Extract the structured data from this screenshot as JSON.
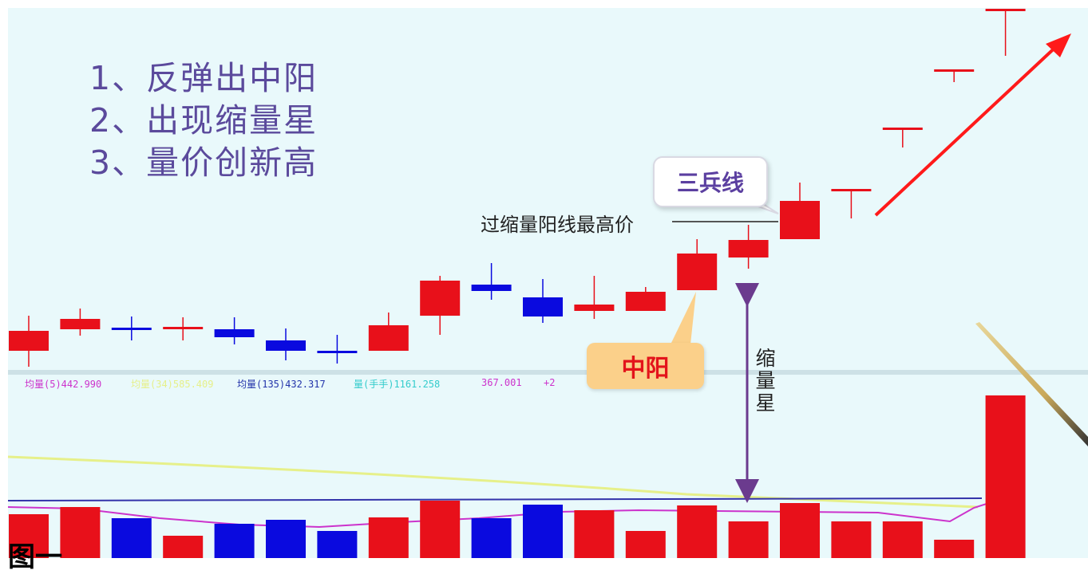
{
  "notes": [
    "1、反弹出中阳",
    "2、出现缩量星",
    "3、量价创新高"
  ],
  "callouts": {
    "sanbing": "三兵线",
    "zhongyang": "中阳",
    "high_line_label": "过缩量阳线最高价",
    "shrink_star": "缩量星"
  },
  "legend": {
    "ma5": "均量(5)442.990",
    "ma_yellow": "均量(34)585.409",
    "ma135": "均量(135)432.317",
    "vol": "量(手手)1161.258",
    "extra": "367.001",
    "plus": "+2"
  },
  "caption": "图一",
  "colors": {
    "up": "#e8101a",
    "down": "#0a0adf",
    "background": "#e9f9fb",
    "ma5_line": "#cc33cc",
    "ma_yellow_line": "#e6f08a",
    "ma135_line": "#3333aa",
    "annotation_arrow": "#6b3b8e"
  },
  "chart_data": {
    "type": "candlestick",
    "candles": [
      {
        "open": 440,
        "close": 415,
        "high": 460,
        "low": 396,
        "dir": "up"
      },
      {
        "open": 413,
        "close": 400,
        "high": 421,
        "low": 387,
        "dir": "up"
      },
      {
        "open": 411,
        "close": 413,
        "high": 427,
        "low": 397,
        "dir": "down"
      },
      {
        "open": 410,
        "close": 412,
        "high": 427,
        "low": 398,
        "dir": "up"
      },
      {
        "open": 413,
        "close": 423,
        "high": 432,
        "low": 398,
        "dir": "down"
      },
      {
        "open": 427,
        "close": 440,
        "high": 452,
        "low": 412,
        "dir": "down"
      },
      {
        "open": 440,
        "close": 443,
        "high": 456,
        "low": 420,
        "dir": "down"
      },
      {
        "open": 440,
        "close": 408,
        "high": 440,
        "low": 392,
        "dir": "up"
      },
      {
        "open": 396,
        "close": 352,
        "high": 420,
        "low": 346,
        "dir": "up"
      },
      {
        "open": 357,
        "close": 365,
        "high": 376,
        "low": 330,
        "dir": "down"
      },
      {
        "open": 373,
        "close": 397,
        "high": 405,
        "low": 350,
        "dir": "down"
      },
      {
        "open": 390,
        "close": 382,
        "high": 400,
        "low": 346,
        "dir": "up"
      },
      {
        "open": 390,
        "close": 366,
        "high": 390,
        "low": 360,
        "dir": "up"
      },
      {
        "open": 364,
        "close": 318,
        "high": 364,
        "low": 300,
        "dir": "up"
      },
      {
        "open": 323,
        "close": 301,
        "high": 337,
        "low": 282,
        "dir": "up"
      },
      {
        "open": 300,
        "close": 252,
        "high": 300,
        "low": 229,
        "dir": "up"
      },
      {
        "open": 240,
        "close": 237,
        "high": 274,
        "low": 237,
        "dir": "up"
      },
      {
        "open": 161,
        "close": 160,
        "high": 185,
        "low": 160,
        "dir": "up"
      },
      {
        "open": 88,
        "close": 87,
        "high": 103,
        "low": 87,
        "dir": "up"
      },
      {
        "open": 12,
        "close": 11,
        "high": 70,
        "low": 11,
        "dir": "up"
      }
    ],
    "volumes": [
      {
        "v": 55,
        "dir": "up"
      },
      {
        "v": 64,
        "dir": "up"
      },
      {
        "v": 50,
        "dir": "down"
      },
      {
        "v": 28,
        "dir": "up"
      },
      {
        "v": 43,
        "dir": "down"
      },
      {
        "v": 48,
        "dir": "down"
      },
      {
        "v": 34,
        "dir": "down"
      },
      {
        "v": 51,
        "dir": "up"
      },
      {
        "v": 72,
        "dir": "up"
      },
      {
        "v": 50,
        "dir": "down"
      },
      {
        "v": 67,
        "dir": "down"
      },
      {
        "v": 60,
        "dir": "up"
      },
      {
        "v": 34,
        "dir": "up"
      },
      {
        "v": 66,
        "dir": "up"
      },
      {
        "v": 46,
        "dir": "up"
      },
      {
        "v": 69,
        "dir": "up"
      },
      {
        "v": 46,
        "dir": "up"
      },
      {
        "v": 46,
        "dir": "up"
      },
      {
        "v": 23,
        "dir": "up"
      },
      {
        "v": 204,
        "dir": "up"
      }
    ],
    "grid": false,
    "legend_position": "top-left of volume panel"
  }
}
